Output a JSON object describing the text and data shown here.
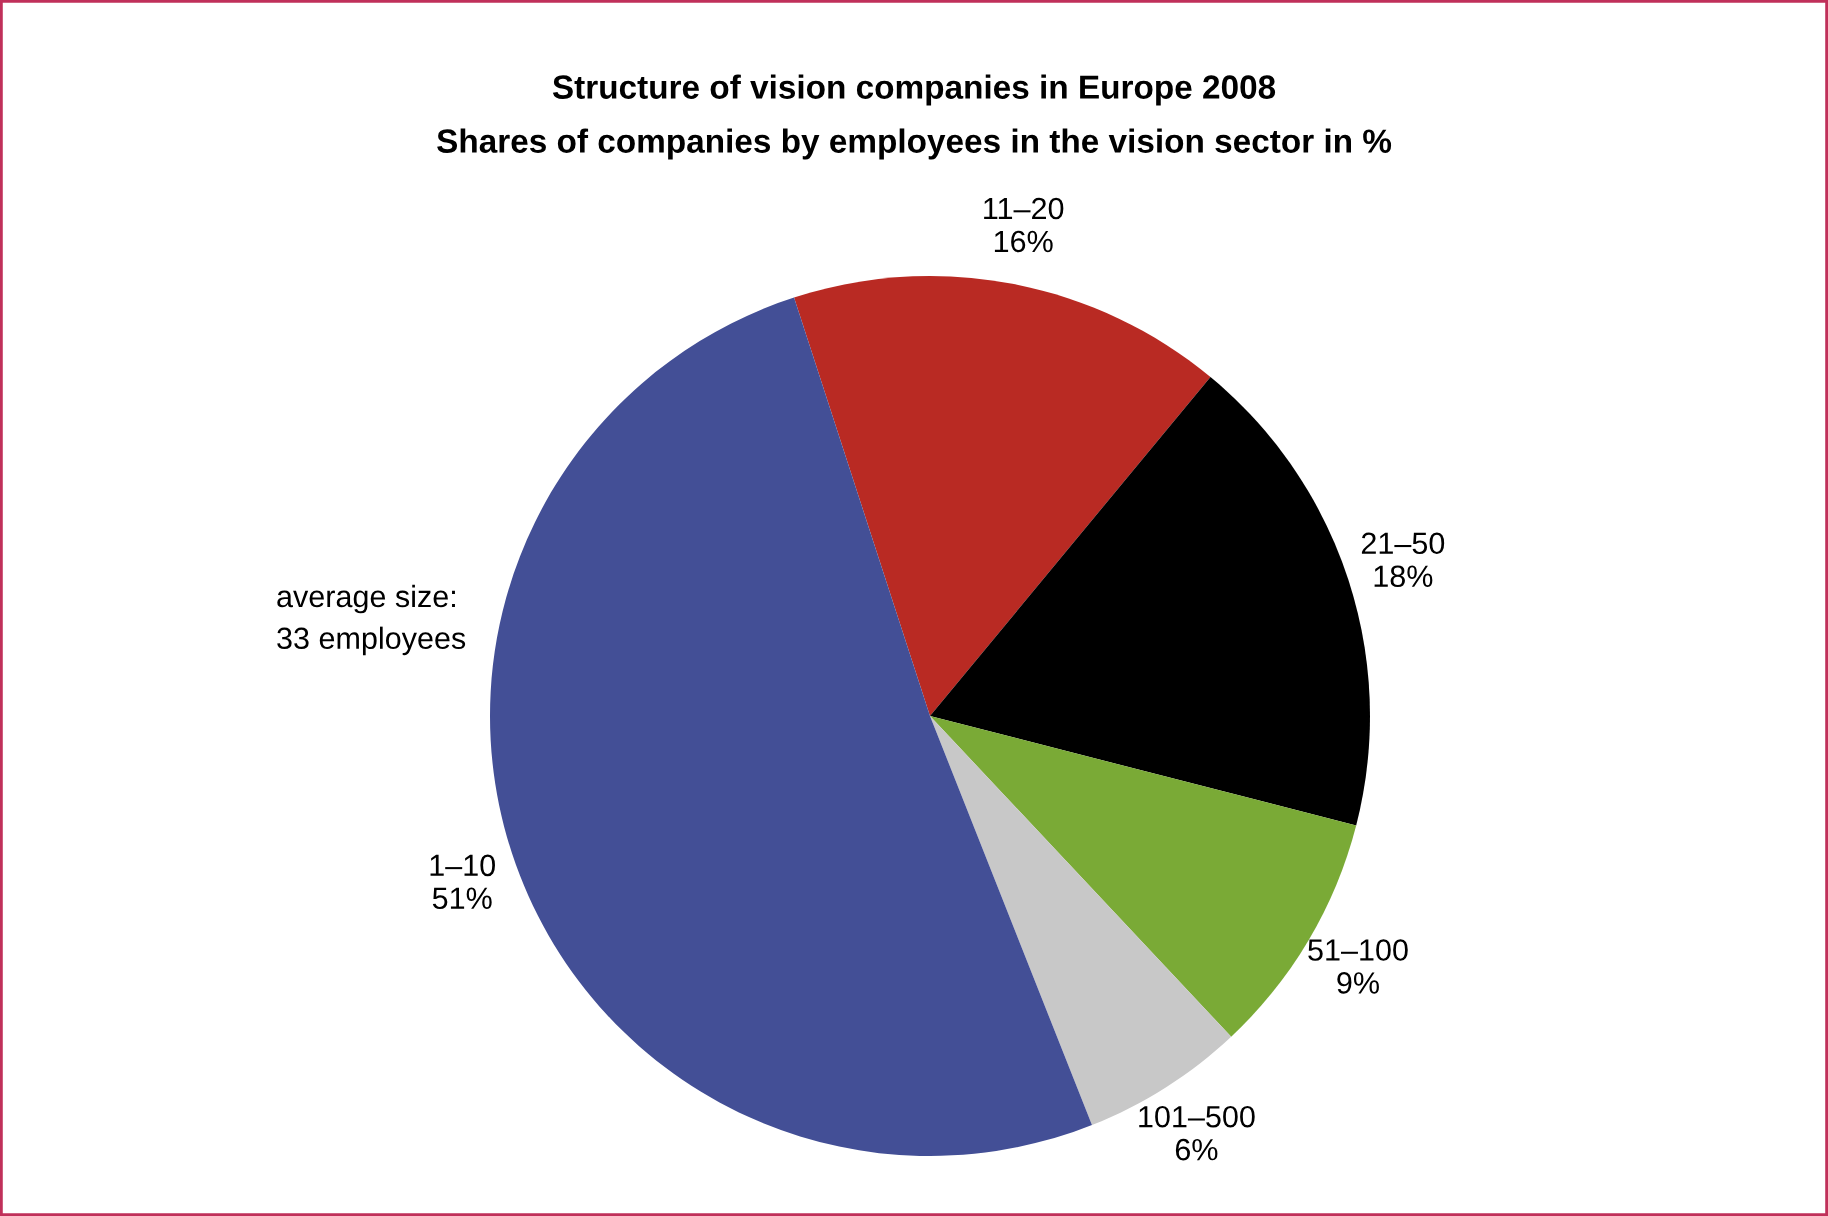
{
  "chart_data": {
    "type": "pie",
    "title": "Structure of vision companies in Europe 2008",
    "subtitle": "Shares of companies by employees in the vision sector in %",
    "categories": [
      "11–20",
      "21–50",
      "51–100",
      "101–500",
      "1–10"
    ],
    "values": [
      16,
      18,
      9,
      6,
      51
    ],
    "value_labels": [
      "16%",
      "18%",
      "9%",
      "6%",
      "51%"
    ],
    "colors": [
      "#b92a23",
      "#000000",
      "#7aaa36",
      "#c8c8c8",
      "#434f96"
    ],
    "annotations": [
      "average size:\n33 employees"
    ],
    "legend": false
  }
}
